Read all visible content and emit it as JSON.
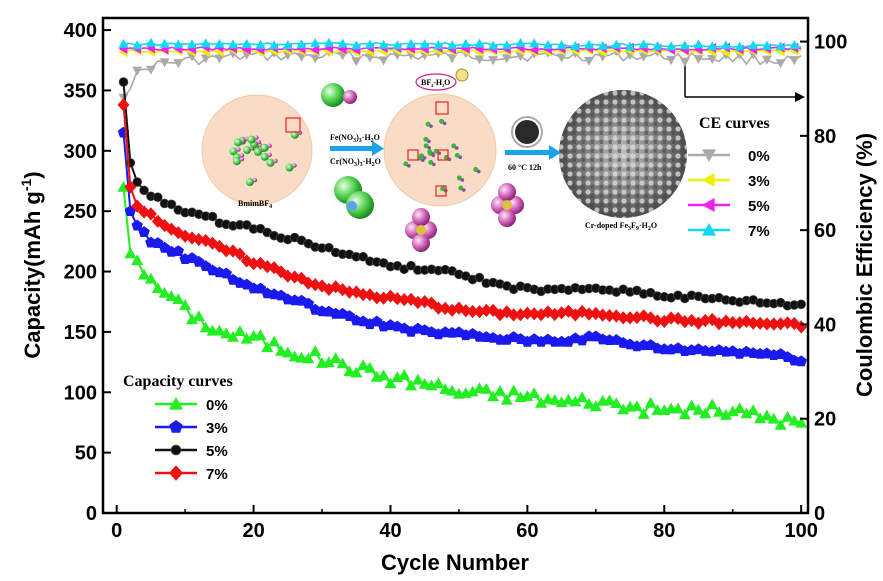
{
  "chart_data": {
    "type": "line",
    "xlabel": "Cycle Number",
    "ylabel": "Capacity(mAh g",
    "ylabel_superscript": "-1",
    "ylabel_close": ")",
    "y2label": "Coulombic Efficiency (%)",
    "xlim": [
      -2,
      101
    ],
    "ylim": [
      0,
      410
    ],
    "y2lim": [
      0,
      105
    ],
    "x_ticks": [
      "0",
      "20",
      "40",
      "60",
      "80",
      "100"
    ],
    "y_ticks": [
      "0",
      "50",
      "100",
      "150",
      "200",
      "250",
      "300",
      "350",
      "400"
    ],
    "y2_ticks": [
      "0",
      "20",
      "40",
      "60",
      "80",
      "100"
    ],
    "capacity_legend": {
      "title": "Capacity curves",
      "placement": "bottom-left",
      "entries": [
        "0%",
        "3%",
        "5%",
        "7%"
      ]
    },
    "ce_legend": {
      "title": "CE curves",
      "placement": "right",
      "entries": [
        "0%",
        "3%",
        "5%",
        "7%"
      ]
    },
    "capacity_series": [
      {
        "name": "0%",
        "color": "#22ee22",
        "marker": "triangle-up",
        "anchors": [
          [
            1,
            270
          ],
          [
            2,
            215
          ],
          [
            3,
            212
          ],
          [
            5,
            190
          ],
          [
            8,
            180
          ],
          [
            10,
            168
          ],
          [
            15,
            150
          ],
          [
            20,
            145
          ],
          [
            25,
            135
          ],
          [
            30,
            128
          ],
          [
            35,
            120
          ],
          [
            40,
            112
          ],
          [
            45,
            108
          ],
          [
            50,
            100
          ],
          [
            55,
            99
          ],
          [
            60,
            97
          ],
          [
            65,
            92
          ],
          [
            70,
            93
          ],
          [
            75,
            88
          ],
          [
            80,
            85
          ],
          [
            85,
            86
          ],
          [
            90,
            84
          ],
          [
            95,
            80
          ],
          [
            100,
            74
          ]
        ]
      },
      {
        "name": "3%",
        "color": "#1a1aee",
        "marker": "pentagon",
        "anchors": [
          [
            1,
            315
          ],
          [
            2,
            250
          ],
          [
            3,
            238
          ],
          [
            5,
            225
          ],
          [
            8,
            218
          ],
          [
            10,
            212
          ],
          [
            15,
            200
          ],
          [
            20,
            186
          ],
          [
            25,
            178
          ],
          [
            30,
            168
          ],
          [
            35,
            160
          ],
          [
            40,
            155
          ],
          [
            45,
            150
          ],
          [
            50,
            148
          ],
          [
            55,
            145
          ],
          [
            60,
            143
          ],
          [
            65,
            143
          ],
          [
            70,
            145
          ],
          [
            75,
            140
          ],
          [
            80,
            136
          ],
          [
            85,
            135
          ],
          [
            90,
            134
          ],
          [
            95,
            132
          ],
          [
            100,
            127
          ]
        ]
      },
      {
        "name": "5%",
        "color": "#111111",
        "marker": "circle",
        "anchors": [
          [
            1,
            357
          ],
          [
            2,
            290
          ],
          [
            3,
            273
          ],
          [
            5,
            262
          ],
          [
            8,
            255
          ],
          [
            10,
            250
          ],
          [
            15,
            242
          ],
          [
            20,
            236
          ],
          [
            25,
            228
          ],
          [
            30,
            220
          ],
          [
            35,
            212
          ],
          [
            40,
            205
          ],
          [
            45,
            202
          ],
          [
            50,
            198
          ],
          [
            55,
            190
          ],
          [
            60,
            185
          ],
          [
            65,
            184
          ],
          [
            70,
            186
          ],
          [
            75,
            184
          ],
          [
            80,
            180
          ],
          [
            85,
            178
          ],
          [
            90,
            176
          ],
          [
            95,
            174
          ],
          [
            100,
            172
          ]
        ]
      },
      {
        "name": "7%",
        "color": "#ee1111",
        "marker": "diamond",
        "anchors": [
          [
            1,
            338
          ],
          [
            2,
            270
          ],
          [
            3,
            256
          ],
          [
            5,
            246
          ],
          [
            8,
            236
          ],
          [
            10,
            230
          ],
          [
            15,
            220
          ],
          [
            20,
            208
          ],
          [
            25,
            198
          ],
          [
            30,
            188
          ],
          [
            35,
            182
          ],
          [
            40,
            178
          ],
          [
            45,
            174
          ],
          [
            50,
            168
          ],
          [
            55,
            166
          ],
          [
            60,
            165
          ],
          [
            65,
            165
          ],
          [
            70,
            166
          ],
          [
            75,
            163
          ],
          [
            80,
            160
          ],
          [
            85,
            159
          ],
          [
            90,
            158
          ],
          [
            95,
            157
          ],
          [
            100,
            155
          ]
        ]
      }
    ],
    "ce_series": [
      {
        "name": "0%",
        "color": "#aaaaaa",
        "marker": "triangle-down",
        "anchors": [
          [
            1,
            90
          ],
          [
            3,
            94
          ],
          [
            5,
            96
          ],
          [
            10,
            97
          ],
          [
            20,
            98
          ],
          [
            40,
            98
          ],
          [
            60,
            98
          ],
          [
            80,
            98
          ],
          [
            100,
            97
          ]
        ]
      },
      {
        "name": "3%",
        "color": "#eeee00",
        "marker": "triangle-left",
        "anchors": [
          [
            1,
            98
          ],
          [
            10,
            98
          ],
          [
            50,
            98
          ],
          [
            100,
            98
          ]
        ]
      },
      {
        "name": "5%",
        "color": "#ee22ee",
        "marker": "triangle-left",
        "anchors": [
          [
            1,
            98.5
          ],
          [
            50,
            98.5
          ],
          [
            100,
            98.5
          ]
        ]
      },
      {
        "name": "7%",
        "color": "#11d8f0",
        "marker": "triangle-up",
        "anchors": [
          [
            1,
            99.5
          ],
          [
            50,
            99.5
          ],
          [
            100,
            99
          ]
        ]
      }
    ],
    "inset": {
      "labels": [
        "BmimBF",
        "Fe(NO",
        ")",
        "·H",
        "O",
        "Cr(NO",
        ")",
        "·H",
        "O",
        "60 °C 12h",
        "Cr-doped Fe",
        "F",
        "·H",
        "O",
        "BF",
        "-H",
        "O"
      ]
    }
  }
}
